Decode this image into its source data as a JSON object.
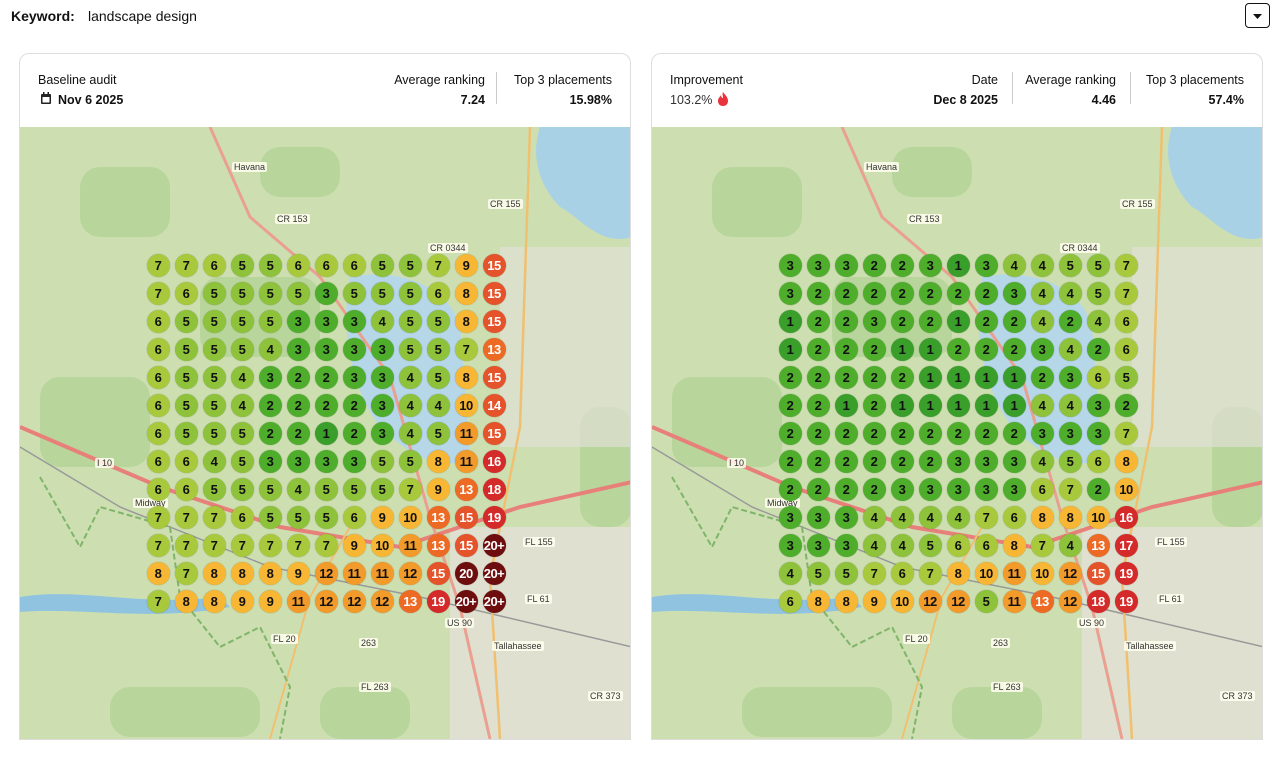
{
  "header": {
    "keyword_label": "Keyword:",
    "keyword": "landscape design"
  },
  "cards": [
    {
      "title": "Baseline audit",
      "date": "Nov 6 2025",
      "stats": [
        {
          "label": "Average ranking",
          "value": "7.24"
        },
        {
          "label": "Top 3 placements",
          "value": "15.98%"
        }
      ],
      "grid": [
        [
          7,
          7,
          6,
          5,
          5,
          6,
          6,
          6,
          5,
          5,
          7,
          9,
          15
        ],
        [
          7,
          6,
          5,
          5,
          5,
          5,
          3,
          5,
          5,
          5,
          6,
          8,
          15
        ],
        [
          6,
          5,
          5,
          5,
          5,
          3,
          3,
          3,
          4,
          5,
          5,
          8,
          15
        ],
        [
          6,
          5,
          5,
          5,
          4,
          3,
          3,
          3,
          3,
          5,
          5,
          7,
          13
        ],
        [
          6,
          5,
          5,
          4,
          3,
          2,
          2,
          3,
          3,
          4,
          5,
          8,
          15
        ],
        [
          6,
          5,
          5,
          4,
          2,
          2,
          2,
          2,
          3,
          4,
          4,
          10,
          14
        ],
        [
          6,
          5,
          5,
          5,
          2,
          2,
          1,
          2,
          3,
          4,
          5,
          11,
          15
        ],
        [
          6,
          6,
          4,
          5,
          3,
          3,
          3,
          3,
          5,
          5,
          8,
          11,
          16
        ],
        [
          6,
          6,
          5,
          5,
          5,
          4,
          5,
          5,
          5,
          7,
          9,
          13,
          18
        ],
        [
          7,
          7,
          7,
          6,
          5,
          5,
          5,
          6,
          9,
          10,
          13,
          15,
          19
        ],
        [
          7,
          7,
          7,
          7,
          7,
          7,
          7,
          9,
          10,
          11,
          13,
          15,
          "20+"
        ],
        [
          8,
          7,
          8,
          8,
          8,
          9,
          12,
          11,
          11,
          12,
          15,
          20,
          "20+"
        ],
        [
          7,
          8,
          8,
          9,
          9,
          11,
          12,
          12,
          12,
          13,
          19,
          "20+",
          "20+"
        ]
      ]
    },
    {
      "title": "Improvement",
      "improvement": "103.2%",
      "date_label": "Date",
      "date": "Dec 8 2025",
      "stats": [
        {
          "label": "Average ranking",
          "value": "4.46"
        },
        {
          "label": "Top 3 placements",
          "value": "57.4%"
        }
      ],
      "grid": [
        [
          3,
          3,
          3,
          2,
          2,
          3,
          1,
          3,
          4,
          4,
          5,
          5,
          7
        ],
        [
          3,
          2,
          2,
          2,
          2,
          2,
          2,
          2,
          3,
          4,
          4,
          5,
          7
        ],
        [
          1,
          2,
          2,
          3,
          2,
          2,
          1,
          2,
          2,
          4,
          2,
          4,
          6
        ],
        [
          1,
          2,
          2,
          2,
          1,
          1,
          2,
          2,
          2,
          3,
          4,
          2,
          6
        ],
        [
          2,
          2,
          2,
          2,
          2,
          1,
          1,
          1,
          1,
          2,
          3,
          6,
          5
        ],
        [
          2,
          2,
          1,
          2,
          1,
          1,
          1,
          1,
          1,
          4,
          4,
          3,
          2
        ],
        [
          2,
          2,
          2,
          2,
          2,
          2,
          2,
          2,
          2,
          3,
          3,
          3,
          7
        ],
        [
          2,
          2,
          2,
          2,
          2,
          2,
          3,
          3,
          3,
          4,
          5,
          6,
          8
        ],
        [
          2,
          2,
          2,
          2,
          3,
          3,
          3,
          3,
          3,
          6,
          7,
          2,
          10
        ],
        [
          3,
          3,
          3,
          4,
          4,
          4,
          4,
          7,
          6,
          8,
          8,
          10,
          16
        ],
        [
          3,
          3,
          3,
          4,
          4,
          5,
          6,
          6,
          8,
          7,
          4,
          13,
          17
        ],
        [
          4,
          5,
          5,
          7,
          6,
          7,
          8,
          10,
          11,
          10,
          12,
          15,
          19
        ],
        [
          6,
          8,
          8,
          9,
          10,
          12,
          12,
          5,
          11,
          13,
          12,
          18,
          19
        ]
      ]
    }
  ],
  "map_labels": [
    "Havana",
    "CR 153",
    "CR 155",
    "CR 0344",
    "I 10",
    "Midway",
    "FL 155",
    "FL 61",
    "US 90",
    "FL 20",
    "263",
    "Tallahassee",
    "FL 263",
    "CR 373"
  ]
}
